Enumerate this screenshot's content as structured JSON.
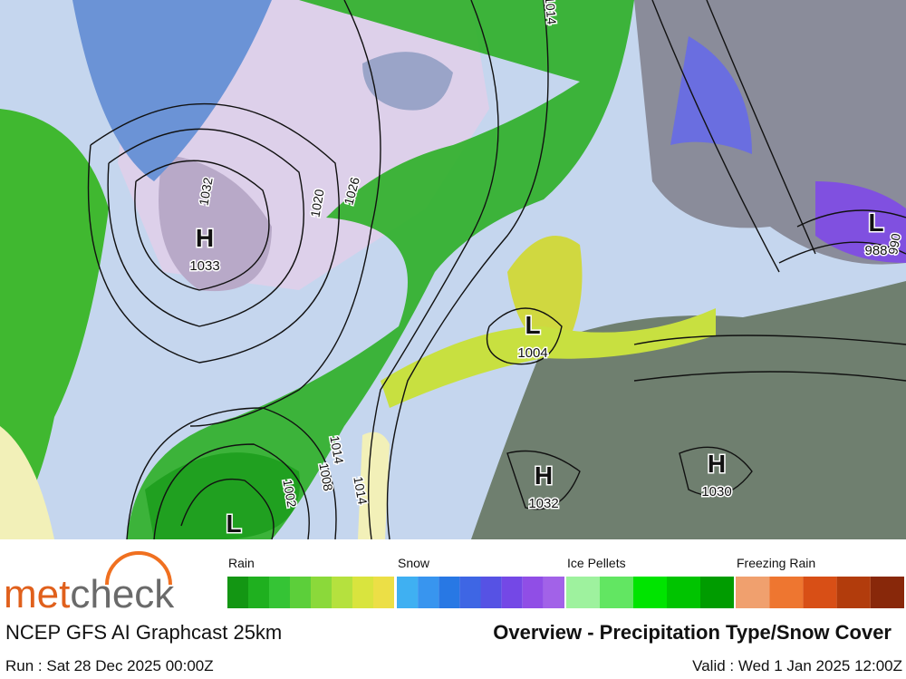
{
  "map": {
    "pressure_centers": [
      {
        "symbol": "H",
        "value": 1033
      },
      {
        "symbol": "L",
        "value": 1004
      },
      {
        "symbol": "H",
        "value": 1032
      },
      {
        "symbol": "H",
        "value": 1030
      },
      {
        "symbol": "L",
        "value": 988
      },
      {
        "symbol": "L"
      }
    ],
    "isobar_labels": [
      1032,
      1020,
      1026,
      1014,
      1014,
      1008,
      1002,
      1014,
      990
    ]
  },
  "legend": [
    {
      "name": "Rain",
      "colors": [
        "#139613",
        "#1fb01f",
        "#35c435",
        "#5ccf3a",
        "#8bd93a",
        "#b5e13e",
        "#d9e43e",
        "#ecdf46"
      ]
    },
    {
      "name": "Snow",
      "colors": [
        "#3fb0f2",
        "#3895ef",
        "#2878e4",
        "#3e66e4",
        "#5652e4",
        "#7448e6",
        "#904ee6",
        "#a262e8"
      ]
    },
    {
      "name": "Ice Pellets",
      "colors": [
        "#9ef29e",
        "#62e662",
        "#00e400",
        "#00c400",
        "#009c00"
      ]
    },
    {
      "name": "Freezing Rain",
      "colors": [
        "#f0a06e",
        "#ee7630",
        "#d84f16",
        "#b23c0c",
        "#88280a"
      ]
    }
  ],
  "logo": {
    "prefix": "met",
    "suffix": "check"
  },
  "model": "NCEP GFS AI Graphcast 25km",
  "title": "Overview - Precipitation Type/Snow Cover",
  "run": "Run : Sat 28 Dec 2025 00:00Z",
  "valid": "Valid : Wed 1 Jan 2025 12:00Z"
}
